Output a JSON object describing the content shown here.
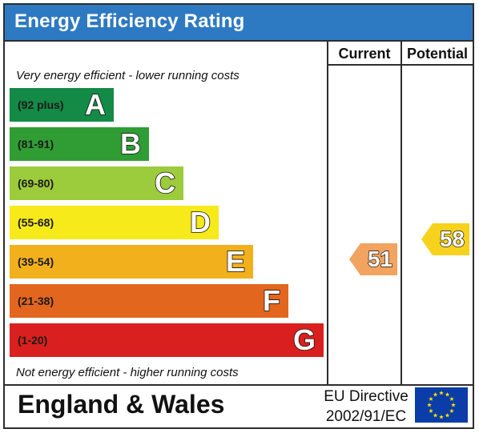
{
  "title": "Energy Efficiency Rating",
  "columns": {
    "current": "Current",
    "potential": "Potential"
  },
  "notes": {
    "top": "Very energy efficient - lower running costs",
    "bottom": "Not energy efficient - higher running costs"
  },
  "footer": {
    "country": "England & Wales",
    "directive_line1": "EU Directive",
    "directive_line2": "2002/91/EC"
  },
  "chart_data": {
    "type": "bar",
    "title": "Energy Efficiency Rating",
    "categories": [
      "A",
      "B",
      "C",
      "D",
      "E",
      "F",
      "G"
    ],
    "bands": [
      {
        "letter": "A",
        "range": "(92 plus)",
        "min": 92,
        "max": 100,
        "color": "#138a45"
      },
      {
        "letter": "B",
        "range": "(81-91)",
        "min": 81,
        "max": 91,
        "color": "#2f9d34"
      },
      {
        "letter": "C",
        "range": "(69-80)",
        "min": 69,
        "max": 80,
        "color": "#9ccb3b"
      },
      {
        "letter": "D",
        "range": "(55-68)",
        "min": 55,
        "max": 68,
        "color": "#f7ea1a"
      },
      {
        "letter": "E",
        "range": "(39-54)",
        "min": 39,
        "max": 54,
        "color": "#f2b01c"
      },
      {
        "letter": "F",
        "range": "(21-38)",
        "min": 21,
        "max": 38,
        "color": "#e3661f"
      },
      {
        "letter": "G",
        "range": "(1-20)",
        "min": 1,
        "max": 20,
        "color": "#d9201e"
      }
    ],
    "series": [
      {
        "name": "Current",
        "value": 51,
        "band": "E",
        "color": "#f2a35f"
      },
      {
        "name": "Potential",
        "value": 58,
        "band": "D",
        "color": "#f7d21c"
      }
    ]
  }
}
